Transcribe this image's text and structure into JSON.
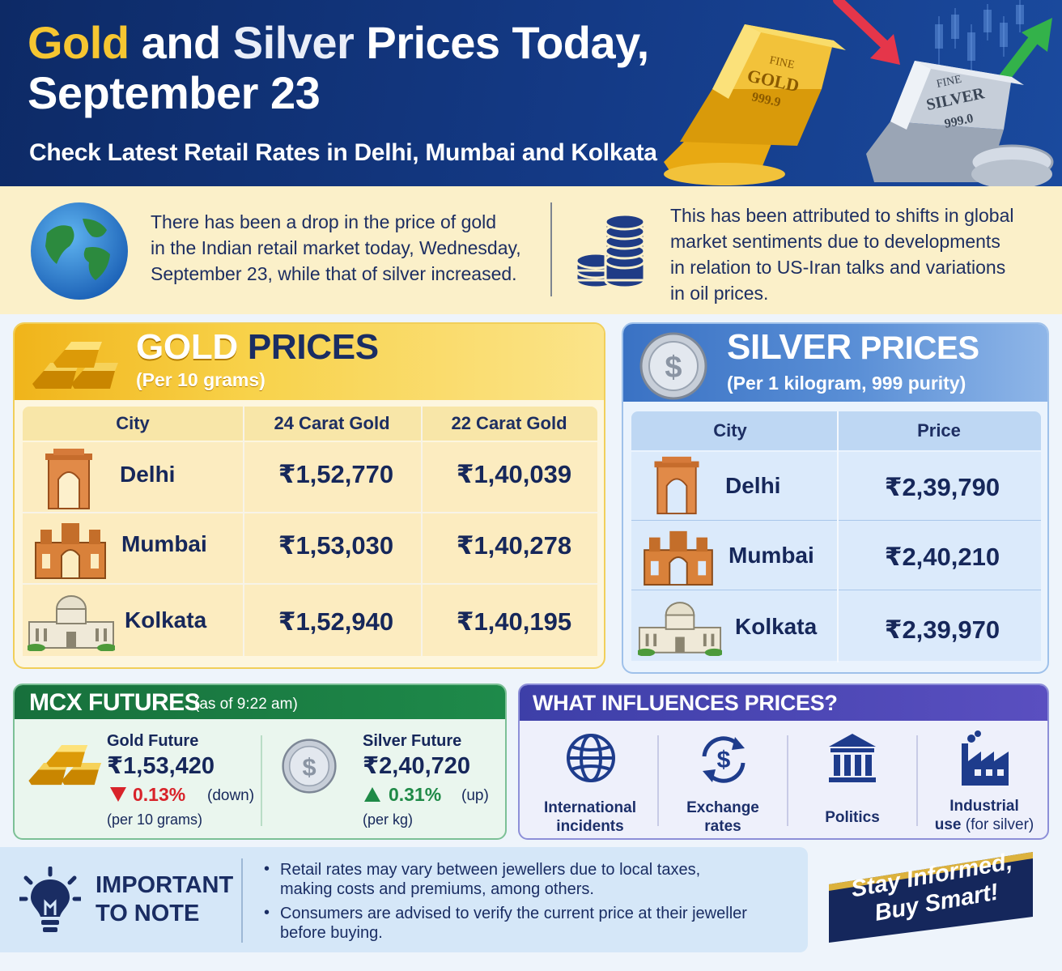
{
  "header": {
    "title_gold": "Gold",
    "title_and": " and ",
    "title_silver": "Silver",
    "title_rest": " Prices Today,",
    "title_line2": "September 23",
    "subtitle": "Check Latest Retail Rates in Delhi, Mumbai and Kolkata",
    "gold_bar": {
      "line1": "FINE",
      "line2": "GOLD",
      "line3": "999.9"
    },
    "silver_bar": {
      "line1": "FINE",
      "line2": "SILVER",
      "line3": "999.0"
    }
  },
  "intro": {
    "left_lines": [
      "There has been a drop in the price of gold",
      "in the Indian retail market today, Wednesday,",
      "September 23, while that of silver increased."
    ],
    "right_lines": [
      "This has been attributed to shifts in global",
      "market sentiments due to developments",
      "in relation to US-Iran talks and variations",
      "in oil prices."
    ]
  },
  "gold": {
    "title_a": "GOLD",
    "title_b": " PRICES",
    "sub": "(Per 10 grams)",
    "headers": [
      "City",
      "24 Carat Gold",
      "22 Carat Gold"
    ],
    "rows": [
      {
        "city": "Delhi",
        "k24": "₹1,52,770",
        "k22": "₹1,40,039"
      },
      {
        "city": "Mumbai",
        "k24": "₹1,53,030",
        "k22": "₹1,40,278"
      },
      {
        "city": "Kolkata",
        "k24": "₹1,52,940",
        "k22": "₹1,40,195"
      }
    ]
  },
  "silver": {
    "title_a": "SILVER",
    "title_b": " PRICES",
    "sub": "(Per 1 kilogram, 999 purity)",
    "coin_symbol": "$",
    "headers": [
      "City",
      "Price"
    ],
    "rows": [
      {
        "city": "Delhi",
        "price": "₹2,39,790"
      },
      {
        "city": "Mumbai",
        "price": "₹2,40,210"
      },
      {
        "city": "Kolkata",
        "price": "₹2,39,970"
      }
    ]
  },
  "mcx": {
    "title": "MCX FUTURES",
    "as_of": "(as of 9:22 am)",
    "gold": {
      "label": "Gold Future",
      "price": "₹1,53,420",
      "pct": "0.13%",
      "dir": "(down)",
      "unit": "(per 10 grams)"
    },
    "silver": {
      "label": "Silver Future",
      "price": "₹2,40,720",
      "pct": "0.31%",
      "dir": "(up)",
      "unit": "(per kg)",
      "coin_symbol": "$"
    },
    "down_color": "#d8232a",
    "up_color": "#1f8a47"
  },
  "influences": {
    "title": "WHAT INFLUENCES PRICES?",
    "items": [
      {
        "line1": "International",
        "line2": "incidents",
        "icon": "globe-icon"
      },
      {
        "line1": "Exchange",
        "line2": "rates",
        "icon": "exchange-icon",
        "symbol": "$"
      },
      {
        "line1": "Politics",
        "line2": "",
        "icon": "government-building-icon"
      },
      {
        "line1": "Industrial",
        "line2a": "use",
        "line2b": " (for silver)",
        "icon": "factory-icon"
      }
    ]
  },
  "note": {
    "title_line1": "IMPORTANT",
    "title_line2": "TO NOTE",
    "items": [
      [
        "Retail rates may vary between jewellers due to local taxes,",
        "making costs and premiums, among others."
      ],
      [
        "Consumers are advised to verify the current price at their jeweller",
        "before buying."
      ]
    ],
    "banner_line1": "Stay Informed,",
    "banner_line2": "Buy Smart!"
  }
}
